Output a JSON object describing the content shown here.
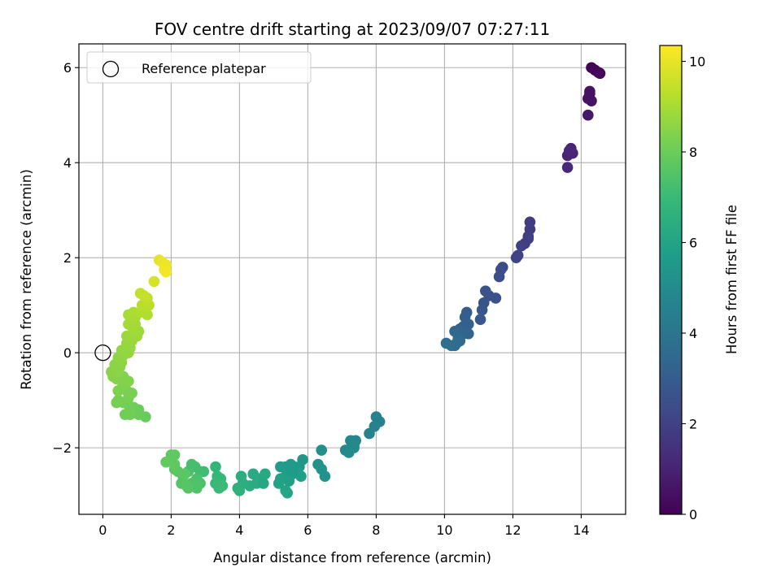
{
  "chart_data": {
    "type": "scatter",
    "title": "FOV centre drift starting at 2023/09/07 07:27:11",
    "xlabel": "Angular distance from reference (arcmin)",
    "ylabel": "Rotation from reference (arcmin)",
    "xlim": [
      -0.7,
      15.3
    ],
    "ylim": [
      -3.4,
      6.5
    ],
    "xticks": [
      0,
      2,
      4,
      6,
      8,
      10,
      12,
      14
    ],
    "yticks": [
      -2,
      0,
      2,
      4,
      6
    ],
    "xtick_labels": [
      "0",
      "2",
      "4",
      "6",
      "8",
      "10",
      "12",
      "14"
    ],
    "ytick_labels": [
      "−2",
      "0",
      "2",
      "4",
      "6"
    ],
    "grid": true,
    "legend": {
      "entries": [
        "Reference platepar"
      ],
      "placement": "upper-left"
    },
    "reference_point": {
      "x": 0,
      "y": 0
    },
    "colormap": "viridis",
    "colorbar": {
      "label": "Hours from first FF file",
      "range": [
        0,
        10.35
      ],
      "ticks": [
        0,
        2,
        4,
        6,
        8,
        10
      ],
      "tick_labels": [
        "0",
        "2",
        "4",
        "6",
        "8",
        "10"
      ]
    },
    "points": [
      {
        "x": 14.3,
        "y": 6.0,
        "t": 0.05
      },
      {
        "x": 14.4,
        "y": 5.95,
        "t": 0.1
      },
      {
        "x": 14.5,
        "y": 5.9,
        "t": 0.15
      },
      {
        "x": 14.55,
        "y": 5.88,
        "t": 0.2
      },
      {
        "x": 14.25,
        "y": 5.45,
        "t": 0.45
      },
      {
        "x": 14.2,
        "y": 5.35,
        "t": 0.5
      },
      {
        "x": 14.3,
        "y": 5.3,
        "t": 0.55
      },
      {
        "x": 14.25,
        "y": 5.5,
        "t": 0.5
      },
      {
        "x": 14.2,
        "y": 5.0,
        "t": 0.7
      },
      {
        "x": 13.7,
        "y": 4.3,
        "t": 1.0
      },
      {
        "x": 13.6,
        "y": 4.15,
        "t": 1.05
      },
      {
        "x": 13.75,
        "y": 4.2,
        "t": 1.1
      },
      {
        "x": 13.65,
        "y": 4.25,
        "t": 1.12
      },
      {
        "x": 13.6,
        "y": 3.9,
        "t": 1.2
      },
      {
        "x": 12.5,
        "y": 2.75,
        "t": 1.8
      },
      {
        "x": 12.5,
        "y": 2.6,
        "t": 1.85
      },
      {
        "x": 12.45,
        "y": 2.45,
        "t": 1.9
      },
      {
        "x": 12.35,
        "y": 2.3,
        "t": 1.95
      },
      {
        "x": 12.25,
        "y": 2.25,
        "t": 2.0
      },
      {
        "x": 12.45,
        "y": 2.4,
        "t": 1.92
      },
      {
        "x": 12.1,
        "y": 2.0,
        "t": 2.15
      },
      {
        "x": 12.15,
        "y": 2.05,
        "t": 2.1
      },
      {
        "x": 11.7,
        "y": 1.8,
        "t": 2.35
      },
      {
        "x": 11.65,
        "y": 1.75,
        "t": 2.4
      },
      {
        "x": 11.6,
        "y": 1.6,
        "t": 2.45
      },
      {
        "x": 11.2,
        "y": 1.3,
        "t": 2.65
      },
      {
        "x": 11.3,
        "y": 1.2,
        "t": 2.6
      },
      {
        "x": 11.5,
        "y": 1.15,
        "t": 2.55
      },
      {
        "x": 11.15,
        "y": 1.05,
        "t": 2.7
      },
      {
        "x": 11.1,
        "y": 0.9,
        "t": 2.75
      },
      {
        "x": 11.05,
        "y": 0.7,
        "t": 2.85
      },
      {
        "x": 10.65,
        "y": 0.85,
        "t": 3.0
      },
      {
        "x": 10.6,
        "y": 0.75,
        "t": 3.05
      },
      {
        "x": 10.7,
        "y": 0.6,
        "t": 3.1
      },
      {
        "x": 10.55,
        "y": 0.55,
        "t": 3.15
      },
      {
        "x": 10.45,
        "y": 0.5,
        "t": 3.2
      },
      {
        "x": 10.6,
        "y": 0.45,
        "t": 3.25
      },
      {
        "x": 10.7,
        "y": 0.4,
        "t": 3.3
      },
      {
        "x": 10.55,
        "y": 0.4,
        "t": 3.35
      },
      {
        "x": 10.3,
        "y": 0.45,
        "t": 3.4
      },
      {
        "x": 10.4,
        "y": 0.3,
        "t": 3.5
      },
      {
        "x": 10.45,
        "y": 0.25,
        "t": 3.55
      },
      {
        "x": 10.3,
        "y": 0.15,
        "t": 3.6
      },
      {
        "x": 10.35,
        "y": 0.2,
        "t": 3.62
      },
      {
        "x": 10.05,
        "y": 0.2,
        "t": 3.7
      },
      {
        "x": 10.2,
        "y": 0.15,
        "t": 3.75
      },
      {
        "x": 8.0,
        "y": -1.35,
        "t": 4.5
      },
      {
        "x": 8.1,
        "y": -1.45,
        "t": 4.55
      },
      {
        "x": 7.95,
        "y": -1.55,
        "t": 4.6
      },
      {
        "x": 7.8,
        "y": -1.7,
        "t": 4.65
      },
      {
        "x": 7.4,
        "y": -1.85,
        "t": 4.75
      },
      {
        "x": 7.25,
        "y": -1.85,
        "t": 4.8
      },
      {
        "x": 7.35,
        "y": -1.95,
        "t": 4.85
      },
      {
        "x": 7.1,
        "y": -2.05,
        "t": 4.9
      },
      {
        "x": 7.2,
        "y": -2.1,
        "t": 4.95
      },
      {
        "x": 7.35,
        "y": -2.0,
        "t": 4.88
      },
      {
        "x": 6.4,
        "y": -2.05,
        "t": 5.1
      },
      {
        "x": 6.3,
        "y": -2.35,
        "t": 5.2
      },
      {
        "x": 6.4,
        "y": -2.45,
        "t": 5.25
      },
      {
        "x": 6.5,
        "y": -2.6,
        "t": 5.3
      },
      {
        "x": 5.85,
        "y": -2.25,
        "t": 5.45
      },
      {
        "x": 5.75,
        "y": -2.4,
        "t": 5.5
      },
      {
        "x": 5.6,
        "y": -2.4,
        "t": 5.55
      },
      {
        "x": 5.5,
        "y": -2.35,
        "t": 5.58
      },
      {
        "x": 5.35,
        "y": -2.4,
        "t": 5.6
      },
      {
        "x": 5.2,
        "y": -2.4,
        "t": 5.65
      },
      {
        "x": 5.55,
        "y": -2.55,
        "t": 5.7
      },
      {
        "x": 5.7,
        "y": -2.5,
        "t": 5.72
      },
      {
        "x": 5.8,
        "y": -2.6,
        "t": 5.75
      },
      {
        "x": 5.35,
        "y": -2.6,
        "t": 5.8
      },
      {
        "x": 5.45,
        "y": -2.7,
        "t": 5.85
      },
      {
        "x": 5.2,
        "y": -2.65,
        "t": 5.9
      },
      {
        "x": 5.15,
        "y": -2.75,
        "t": 5.95
      },
      {
        "x": 5.35,
        "y": -2.9,
        "t": 6.0
      },
      {
        "x": 5.4,
        "y": -2.95,
        "t": 6.05
      },
      {
        "x": 5.55,
        "y": -2.5,
        "t": 5.68
      },
      {
        "x": 4.75,
        "y": -2.55,
        "t": 6.2
      },
      {
        "x": 4.6,
        "y": -2.65,
        "t": 6.25
      },
      {
        "x": 4.4,
        "y": -2.55,
        "t": 6.3
      },
      {
        "x": 4.5,
        "y": -2.75,
        "t": 6.35
      },
      {
        "x": 4.3,
        "y": -2.8,
        "t": 6.4
      },
      {
        "x": 4.05,
        "y": -2.6,
        "t": 6.45
      },
      {
        "x": 4.1,
        "y": -2.75,
        "t": 6.5
      },
      {
        "x": 3.95,
        "y": -2.85,
        "t": 6.55
      },
      {
        "x": 4.0,
        "y": -2.9,
        "t": 6.6
      },
      {
        "x": 4.7,
        "y": -2.75,
        "t": 6.22
      },
      {
        "x": 3.3,
        "y": -2.4,
        "t": 6.8
      },
      {
        "x": 3.35,
        "y": -2.6,
        "t": 6.85
      },
      {
        "x": 3.45,
        "y": -2.65,
        "t": 6.9
      },
      {
        "x": 3.3,
        "y": -2.75,
        "t": 6.95
      },
      {
        "x": 3.4,
        "y": -2.85,
        "t": 7.0
      },
      {
        "x": 3.5,
        "y": -2.8,
        "t": 7.05
      },
      {
        "x": 2.95,
        "y": -2.5,
        "t": 7.1
      },
      {
        "x": 2.85,
        "y": -2.5,
        "t": 7.15
      },
      {
        "x": 2.7,
        "y": -2.4,
        "t": 7.2
      },
      {
        "x": 2.6,
        "y": -2.35,
        "t": 7.25
      },
      {
        "x": 2.5,
        "y": -2.5,
        "t": 7.3
      },
      {
        "x": 2.75,
        "y": -2.65,
        "t": 7.35
      },
      {
        "x": 2.85,
        "y": -2.75,
        "t": 7.4
      },
      {
        "x": 2.75,
        "y": -2.85,
        "t": 7.45
      },
      {
        "x": 2.6,
        "y": -2.75,
        "t": 7.5
      },
      {
        "x": 2.45,
        "y": -2.8,
        "t": 7.55
      },
      {
        "x": 2.3,
        "y": -2.75,
        "t": 7.58
      },
      {
        "x": 2.5,
        "y": -2.85,
        "t": 7.6
      },
      {
        "x": 2.35,
        "y": -2.6,
        "t": 7.62
      },
      {
        "x": 2.2,
        "y": -2.5,
        "t": 7.65
      },
      {
        "x": 2.1,
        "y": -2.45,
        "t": 7.68
      },
      {
        "x": 2.4,
        "y": -2.55,
        "t": 7.66
      },
      {
        "x": 2.0,
        "y": -2.15,
        "t": 7.75
      },
      {
        "x": 2.1,
        "y": -2.15,
        "t": 7.78
      },
      {
        "x": 2.1,
        "y": -2.35,
        "t": 7.8
      },
      {
        "x": 1.85,
        "y": -2.3,
        "t": 7.85
      },
      {
        "x": 1.25,
        "y": -1.35,
        "t": 7.95
      },
      {
        "x": 1.05,
        "y": -1.3,
        "t": 8.0
      },
      {
        "x": 1.05,
        "y": -1.2,
        "t": 8.02
      },
      {
        "x": 0.9,
        "y": -1.15,
        "t": 8.05
      },
      {
        "x": 0.8,
        "y": -1.3,
        "t": 8.08
      },
      {
        "x": 0.65,
        "y": -1.3,
        "t": 8.1
      },
      {
        "x": 0.75,
        "y": -1.1,
        "t": 8.12
      },
      {
        "x": 0.6,
        "y": -1.05,
        "t": 8.15
      },
      {
        "x": 0.45,
        "y": -1.0,
        "t": 8.18
      },
      {
        "x": 0.4,
        "y": -1.05,
        "t": 8.2
      },
      {
        "x": 0.75,
        "y": -0.95,
        "t": 8.22
      },
      {
        "x": 0.85,
        "y": -0.85,
        "t": 8.25
      },
      {
        "x": 0.7,
        "y": -0.8,
        "t": 8.28
      },
      {
        "x": 0.55,
        "y": -0.75,
        "t": 8.3
      },
      {
        "x": 0.45,
        "y": -0.8,
        "t": 8.32
      },
      {
        "x": 0.65,
        "y": -0.65,
        "t": 8.35
      },
      {
        "x": 0.75,
        "y": -0.6,
        "t": 8.38
      },
      {
        "x": 0.6,
        "y": -0.5,
        "t": 8.4
      },
      {
        "x": 0.4,
        "y": -0.55,
        "t": 8.42
      },
      {
        "x": 0.3,
        "y": -0.5,
        "t": 8.45
      },
      {
        "x": 0.25,
        "y": -0.4,
        "t": 8.48
      },
      {
        "x": 0.45,
        "y": -0.4,
        "t": 8.5
      },
      {
        "x": 0.5,
        "y": -0.3,
        "t": 8.52
      },
      {
        "x": 0.35,
        "y": -0.25,
        "t": 8.55
      },
      {
        "x": 0.55,
        "y": -0.2,
        "t": 8.58
      },
      {
        "x": 0.45,
        "y": -0.1,
        "t": 8.6
      },
      {
        "x": 0.6,
        "y": -0.05,
        "t": 8.62
      },
      {
        "x": 0.55,
        "y": 0.05,
        "t": 8.65
      },
      {
        "x": 0.75,
        "y": 0.0,
        "t": 8.68
      },
      {
        "x": 0.8,
        "y": 0.1,
        "t": 8.7
      },
      {
        "x": 0.7,
        "y": 0.2,
        "t": 8.72
      },
      {
        "x": 0.85,
        "y": 0.25,
        "t": 8.75
      },
      {
        "x": 0.7,
        "y": 0.35,
        "t": 8.78
      },
      {
        "x": 0.85,
        "y": 0.35,
        "t": 8.8
      },
      {
        "x": 1.0,
        "y": 0.35,
        "t": 8.82
      },
      {
        "x": 1.05,
        "y": 0.45,
        "t": 8.85
      },
      {
        "x": 0.9,
        "y": 0.45,
        "t": 8.88
      },
      {
        "x": 0.85,
        "y": 0.55,
        "t": 8.9
      },
      {
        "x": 0.75,
        "y": 0.6,
        "t": 8.92
      },
      {
        "x": 0.95,
        "y": 0.6,
        "t": 8.95
      },
      {
        "x": 0.95,
        "y": 0.75,
        "t": 8.98
      },
      {
        "x": 0.75,
        "y": 0.8,
        "t": 9.0
      },
      {
        "x": 0.9,
        "y": 0.85,
        "t": 9.05
      },
      {
        "x": 1.1,
        "y": 0.85,
        "t": 9.1
      },
      {
        "x": 1.3,
        "y": 0.8,
        "t": 9.15
      },
      {
        "x": 1.25,
        "y": 0.95,
        "t": 9.2
      },
      {
        "x": 1.15,
        "y": 1.0,
        "t": 9.25
      },
      {
        "x": 1.35,
        "y": 1.0,
        "t": 9.3
      },
      {
        "x": 1.3,
        "y": 1.15,
        "t": 9.35
      },
      {
        "x": 1.1,
        "y": 1.25,
        "t": 9.4
      },
      {
        "x": 1.2,
        "y": 1.2,
        "t": 9.45
      },
      {
        "x": 1.5,
        "y": 1.5,
        "t": 9.7
      },
      {
        "x": 1.65,
        "y": 1.95,
        "t": 10.0
      },
      {
        "x": 1.75,
        "y": 1.9,
        "t": 10.05
      },
      {
        "x": 1.85,
        "y": 1.85,
        "t": 10.1
      },
      {
        "x": 1.8,
        "y": 1.75,
        "t": 10.15
      },
      {
        "x": 1.85,
        "y": 1.7,
        "t": 10.2
      }
    ]
  }
}
